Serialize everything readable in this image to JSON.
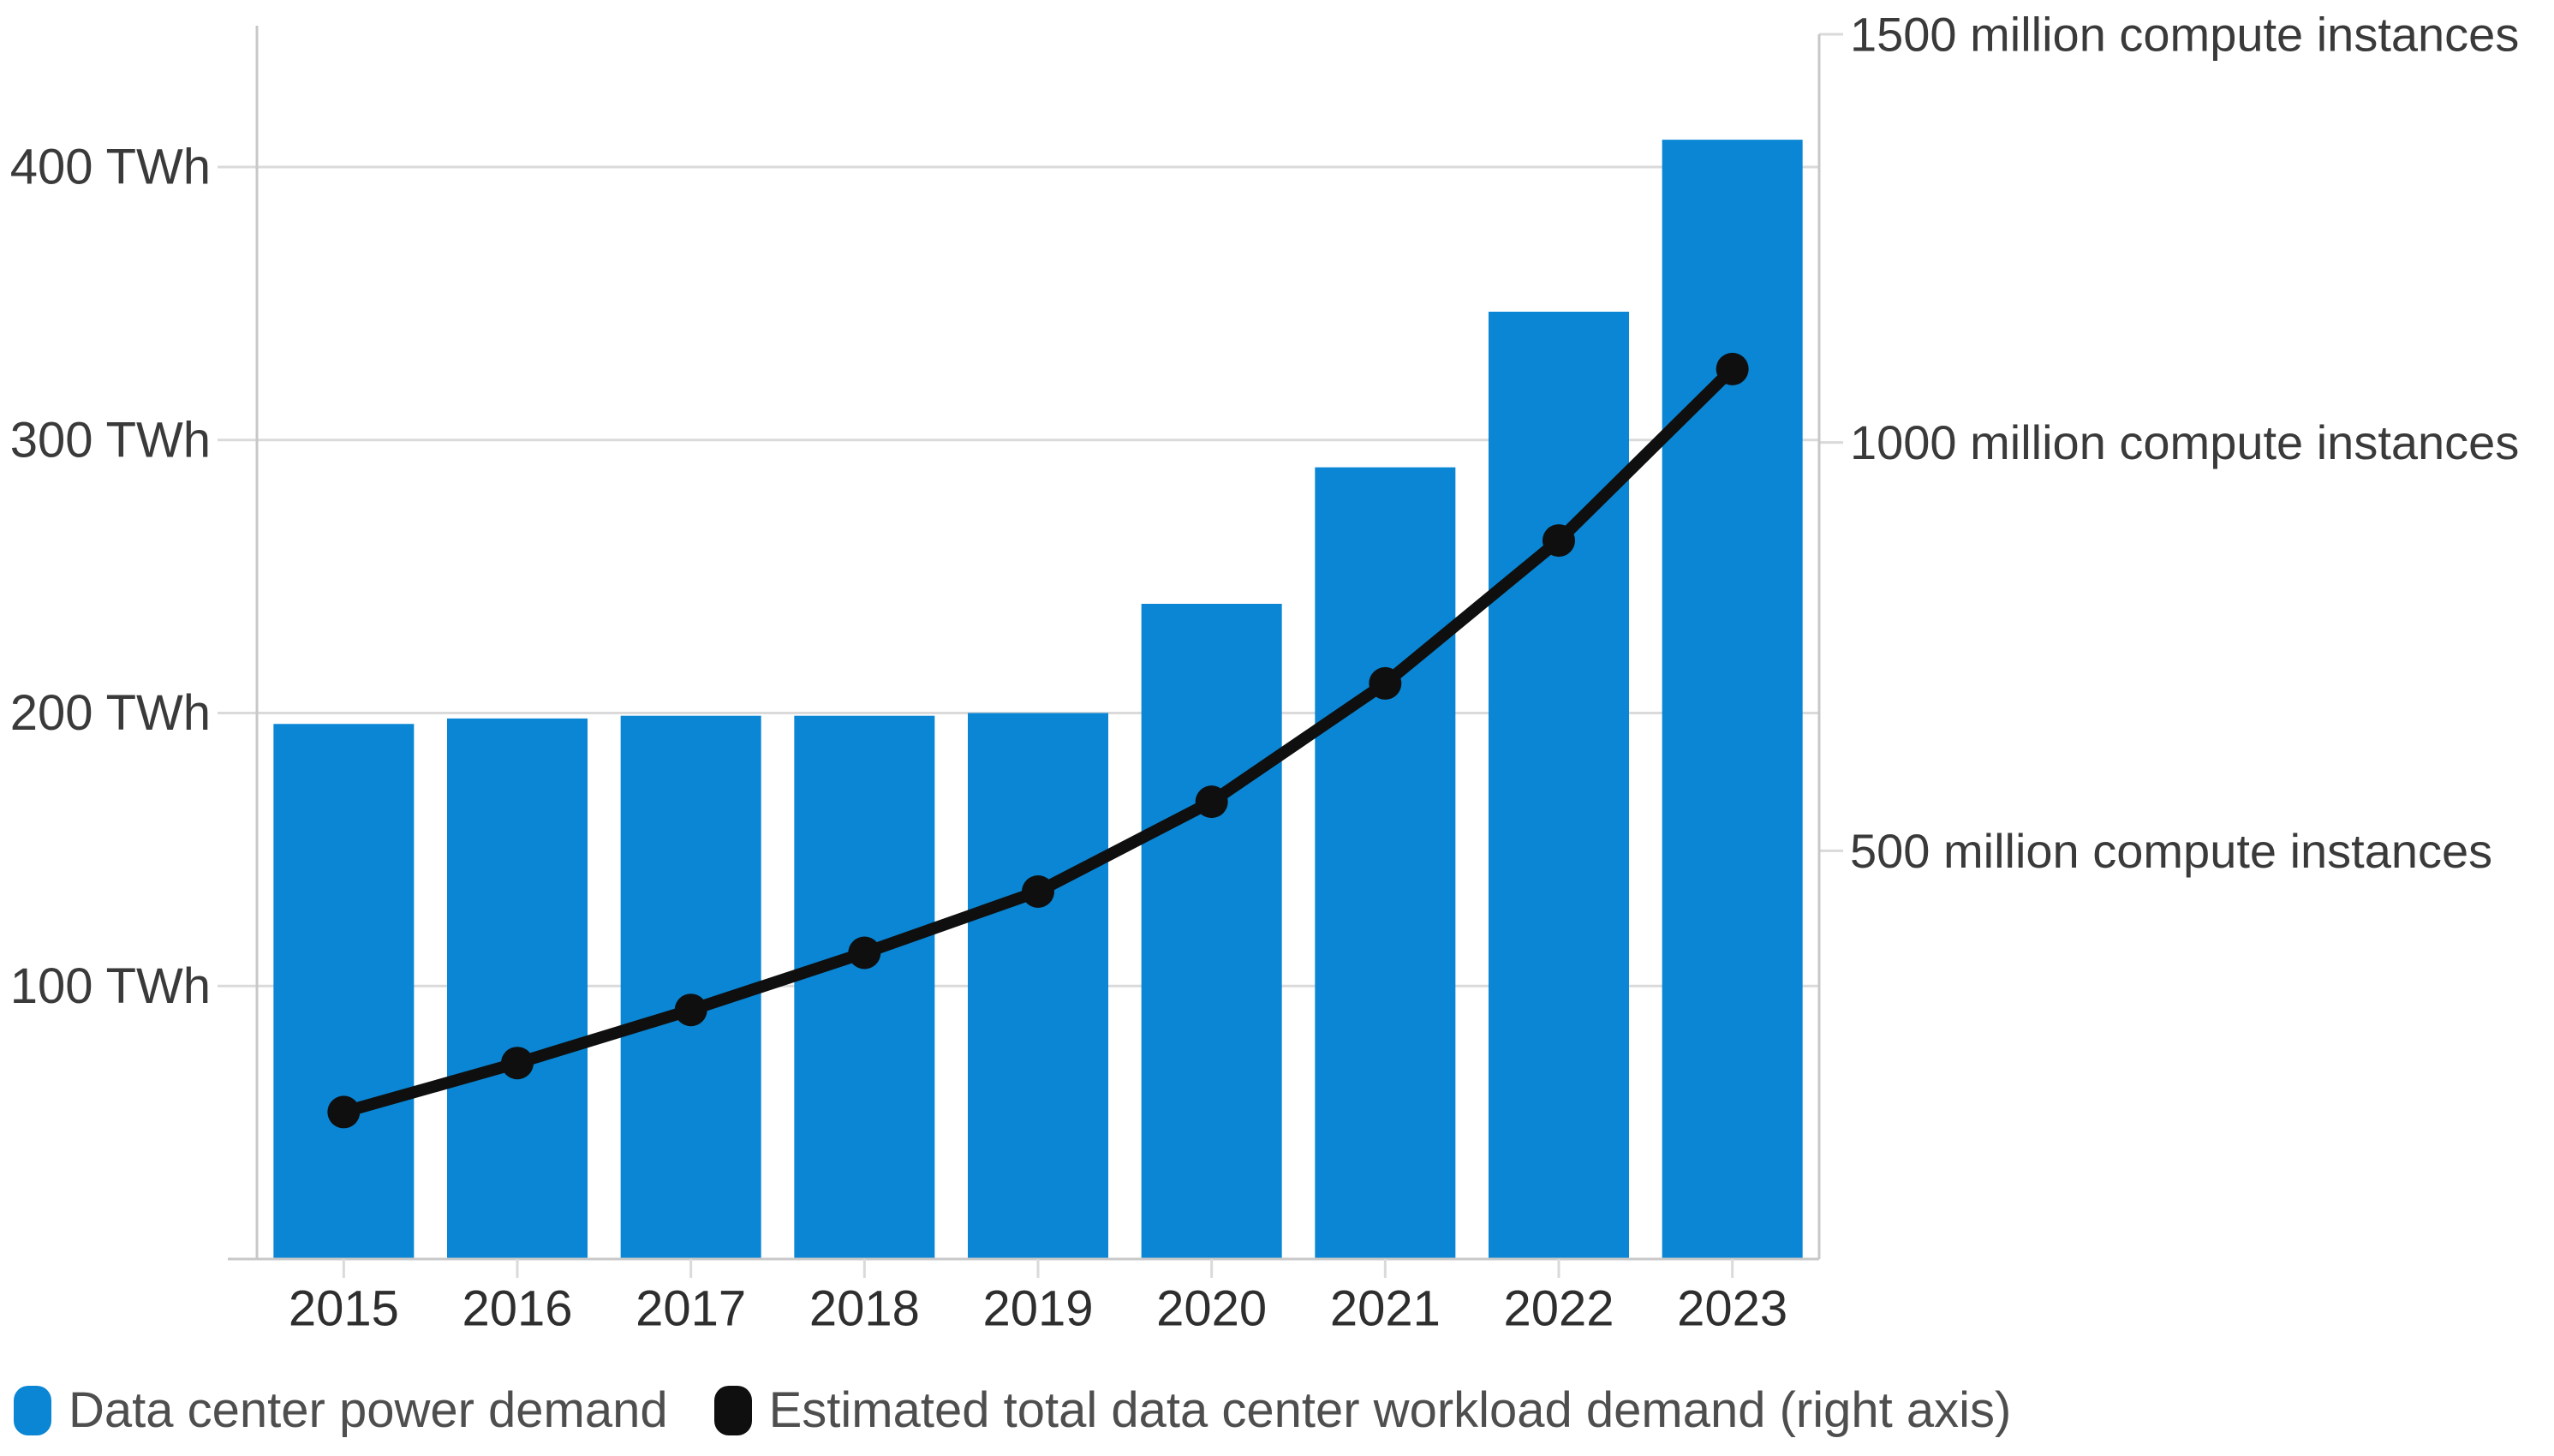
{
  "chart_data": {
    "type": "combo-bar-line",
    "categories": [
      "2015",
      "2016",
      "2017",
      "2018",
      "2019",
      "2020",
      "2021",
      "2022",
      "2023"
    ],
    "series": [
      {
        "name": "Data center power demand",
        "type": "bar",
        "axis": "left",
        "unit": "TWh",
        "values": [
          196,
          198,
          199,
          199,
          200,
          240,
          290,
          347,
          410
        ]
      },
      {
        "name": "Estimated total data center workload demand (right axis)",
        "type": "line",
        "axis": "right",
        "unit": "million compute instances",
        "values": [
          180,
          240,
          305,
          375,
          450,
          560,
          705,
          880,
          1090
        ]
      }
    ],
    "left_axis": {
      "unit": "TWh",
      "range": [
        0,
        452
      ],
      "ticks": [
        {
          "value": 400,
          "label": "400 TWh"
        },
        {
          "value": 300,
          "label": "300 TWh"
        },
        {
          "value": 200,
          "label": "200 TWh"
        },
        {
          "value": 100,
          "label": "100 TWh"
        }
      ]
    },
    "right_axis": {
      "unit": "million compute instances",
      "range": [
        0,
        1500
      ],
      "max": 1500,
      "ticks": [
        {
          "value": 1500,
          "label": "1500 million compute instances"
        },
        {
          "value": 1000,
          "label": "1000 million compute instances"
        },
        {
          "value": 500,
          "label": "500 million compute instances"
        }
      ]
    },
    "grid": true,
    "legend_position": "bottom-left"
  },
  "legend": {
    "items": [
      {
        "label": "Data center power demand",
        "color": "#0a86d4"
      },
      {
        "label": "Estimated total data center workload demand (right axis)",
        "color": "#0f0f0f"
      }
    ]
  },
  "colors": {
    "bar": "#0a86d4",
    "line": "#0f0f0f",
    "grid": "#dadada",
    "axis": "#c8c8c8",
    "tick_text": "#3a3a3a",
    "year_text": "#2e2e2e",
    "legend_text": "#4e4e4e",
    "background": "#ffffff"
  }
}
